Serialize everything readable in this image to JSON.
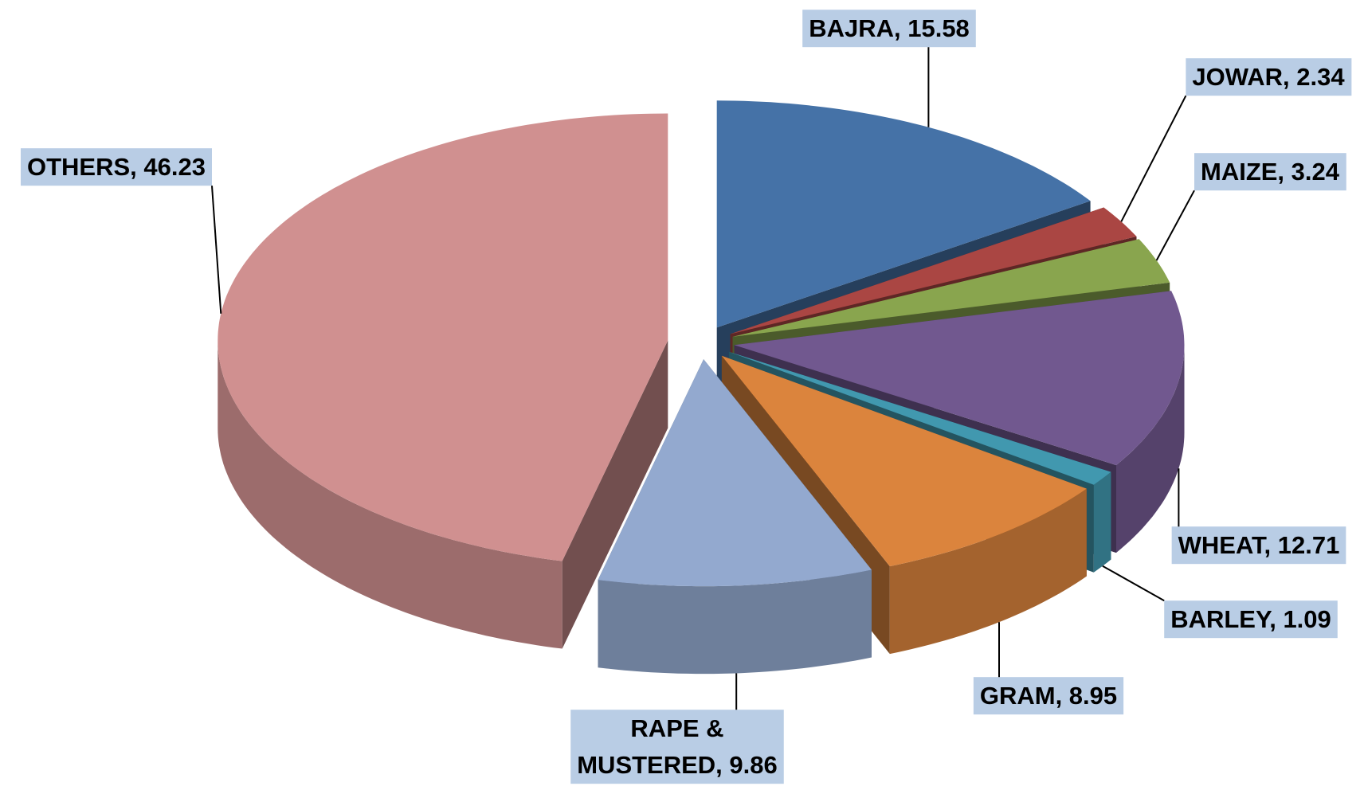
{
  "chart_data": {
    "type": "pie",
    "three_d": true,
    "categories": [
      "BAJRA",
      "JOWAR",
      "MAIZE",
      "WHEAT",
      "BARLEY",
      "GRAM",
      "RAPE & MUSTERED",
      "OTHERS"
    ],
    "values": [
      15.58,
      2.34,
      3.24,
      12.71,
      1.09,
      8.95,
      9.86,
      46.23
    ],
    "value_labels": [
      "BAJRA, 15.58",
      "JOWAR, 2.34",
      "MAIZE, 3.24",
      "WHEAT, 12.71",
      "BARLEY, 1.09",
      "GRAM, 8.95",
      "RAPE & MUSTERED, 9.86",
      "OTHERS, 46.23"
    ],
    "colors": [
      "#4572a7",
      "#aa4643",
      "#89a54e",
      "#71588f",
      "#4198af",
      "#db843d",
      "#93a9cf",
      "#d09090"
    ]
  }
}
